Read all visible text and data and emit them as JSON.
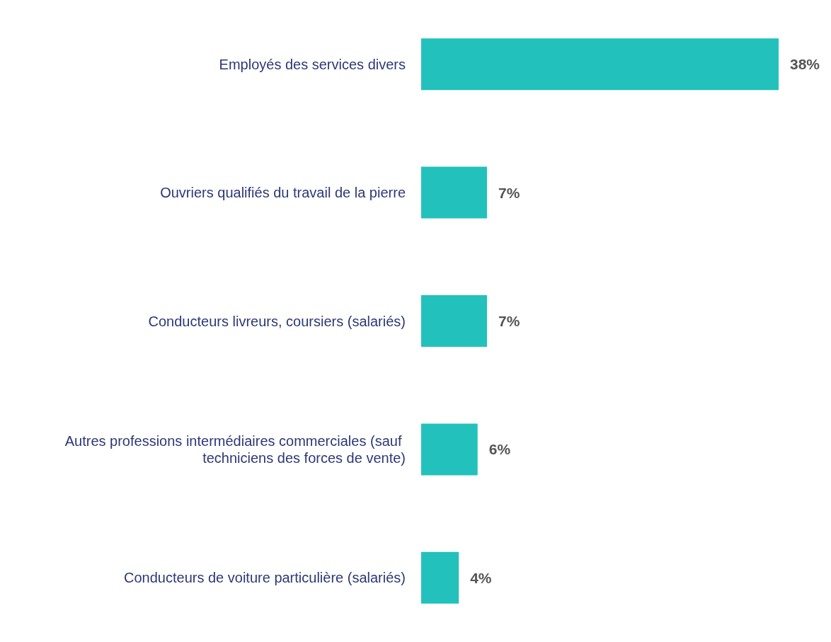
{
  "chart_data": {
    "type": "bar",
    "orientation": "horizontal",
    "categories": [
      "Employés des services divers",
      "Ouvriers qualifiés du travail de la pierre",
      "Conducteurs livreurs, coursiers (salariés)",
      "Autres professions intermédiaires commerciales (sauf techniciens des forces de vente)",
      "Conducteurs de voiture particulière (salariés)"
    ],
    "values": [
      38,
      7,
      7,
      6,
      4
    ],
    "value_labels": [
      "38%",
      "7%",
      "7%",
      "6%",
      "4%"
    ],
    "color": "#22c1bc"
  }
}
